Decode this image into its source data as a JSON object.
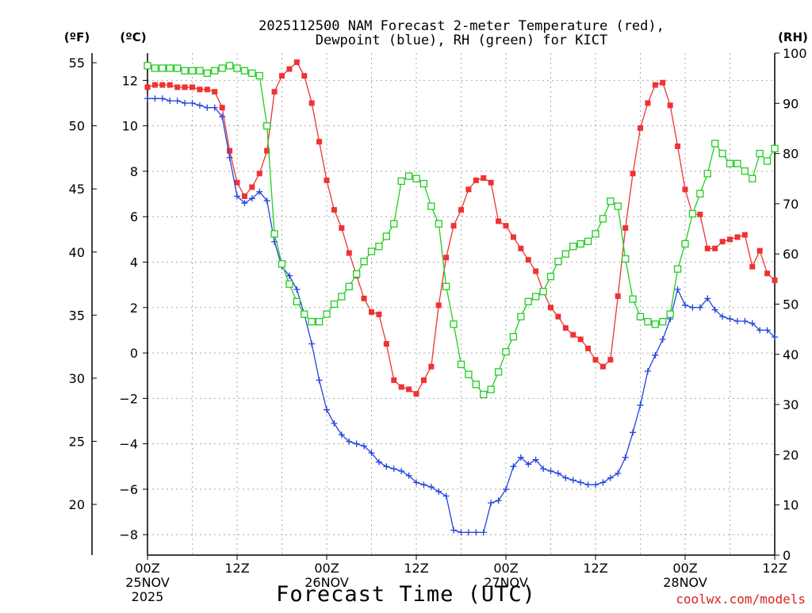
{
  "chart_data": {
    "type": "line",
    "title_line1": "2025112500 NAM Forecast 2-meter Temperature (red),",
    "title_line2": "Dewpoint (blue), RH (green) for KICT",
    "xlabel": "Forecast Time (UTC)",
    "credit": "coolwx.com/models",
    "left_outer_unit": "(ºF)",
    "left_inner_unit": "(ºC)",
    "right_unit": "(RH)",
    "x_range_hours": [
      0,
      84
    ],
    "y_celsius_range": [
      -8.9,
      13.2
    ],
    "rh_range": [
      0,
      100
    ],
    "colors": {
      "temperature": "#ee3333",
      "dewpoint": "#2244dd",
      "rh": "#22cc22",
      "grid": "#aaaaaa"
    },
    "x_ticks": [
      {
        "hour": 0,
        "time": "00Z",
        "date": "25NOV",
        "year": "2025"
      },
      {
        "hour": 12,
        "time": "12Z",
        "date": "",
        "year": ""
      },
      {
        "hour": 24,
        "time": "00Z",
        "date": "26NOV",
        "year": ""
      },
      {
        "hour": 36,
        "time": "12Z",
        "date": "",
        "year": ""
      },
      {
        "hour": 48,
        "time": "00Z",
        "date": "27NOV",
        "year": ""
      },
      {
        "hour": 60,
        "time": "12Z",
        "date": "",
        "year": ""
      },
      {
        "hour": 72,
        "time": "00Z",
        "date": "28NOV",
        "year": ""
      },
      {
        "hour": 84,
        "time": "12Z",
        "date": "",
        "year": ""
      }
    ],
    "celsius_ticks": [
      12,
      10,
      8,
      6,
      4,
      2,
      0,
      -2,
      -4,
      -6,
      -8
    ],
    "fahrenheit_ticks": [
      55,
      50,
      45,
      40,
      35,
      30,
      25,
      20
    ],
    "rh_ticks": [
      100,
      90,
      80,
      70,
      60,
      50,
      40,
      30,
      20,
      10,
      0
    ],
    "series": [
      {
        "name": "Temperature",
        "unit": "C",
        "marker": "filled-square",
        "color": "#ee3333",
        "points": [
          [
            0,
            11.7
          ],
          [
            1,
            11.8
          ],
          [
            2,
            11.8
          ],
          [
            3,
            11.8
          ],
          [
            4,
            11.7
          ],
          [
            5,
            11.7
          ],
          [
            6,
            11.7
          ],
          [
            7,
            11.6
          ],
          [
            8,
            11.6
          ],
          [
            9,
            11.5
          ],
          [
            10,
            10.8
          ],
          [
            11,
            8.9
          ],
          [
            12,
            7.5
          ],
          [
            13,
            6.9
          ],
          [
            14,
            7.3
          ],
          [
            15,
            7.9
          ],
          [
            16,
            8.9
          ],
          [
            17,
            11.5
          ],
          [
            18,
            12.2
          ],
          [
            19,
            12.5
          ],
          [
            20,
            12.8
          ],
          [
            21,
            12.2
          ],
          [
            22,
            11.0
          ],
          [
            23,
            9.3
          ],
          [
            24,
            7.6
          ],
          [
            25,
            6.3
          ],
          [
            26,
            5.5
          ],
          [
            27,
            4.4
          ],
          [
            28,
            3.4
          ],
          [
            29,
            2.4
          ],
          [
            30,
            1.8
          ],
          [
            31,
            1.7
          ],
          [
            32,
            0.4
          ],
          [
            33,
            -1.2
          ],
          [
            34,
            -1.5
          ],
          [
            35,
            -1.6
          ],
          [
            36,
            -1.8
          ],
          [
            37,
            -1.2
          ],
          [
            38,
            -0.6
          ],
          [
            39,
            2.1
          ],
          [
            40,
            4.2
          ],
          [
            41,
            5.6
          ],
          [
            42,
            6.3
          ],
          [
            43,
            7.2
          ],
          [
            44,
            7.6
          ],
          [
            45,
            7.7
          ],
          [
            46,
            7.5
          ],
          [
            47,
            5.8
          ],
          [
            48,
            5.6
          ],
          [
            49,
            5.1
          ],
          [
            50,
            4.6
          ],
          [
            51,
            4.1
          ],
          [
            52,
            3.6
          ],
          [
            53,
            2.7
          ],
          [
            54,
            2.0
          ],
          [
            55,
            1.6
          ],
          [
            56,
            1.1
          ],
          [
            57,
            0.8
          ],
          [
            58,
            0.6
          ],
          [
            59,
            0.2
          ],
          [
            60,
            -0.3
          ],
          [
            61,
            -0.6
          ],
          [
            62,
            -0.3
          ],
          [
            63,
            2.5
          ],
          [
            64,
            5.5
          ],
          [
            65,
            7.9
          ],
          [
            66,
            9.9
          ],
          [
            67,
            11.0
          ],
          [
            68,
            11.8
          ],
          [
            69,
            11.9
          ],
          [
            70,
            10.9
          ],
          [
            71,
            9.1
          ],
          [
            72,
            7.2
          ],
          [
            73,
            6.1
          ],
          [
            74,
            6.1
          ],
          [
            75,
            4.6
          ],
          [
            76,
            4.6
          ],
          [
            77,
            4.9
          ],
          [
            78,
            5.0
          ],
          [
            79,
            5.1
          ],
          [
            80,
            5.2
          ],
          [
            81,
            3.8
          ],
          [
            82,
            4.5
          ],
          [
            83,
            3.5
          ],
          [
            84,
            3.2
          ]
        ]
      },
      {
        "name": "Dewpoint",
        "unit": "C",
        "marker": "plus",
        "color": "#2244dd",
        "points": [
          [
            0,
            11.2
          ],
          [
            1,
            11.2
          ],
          [
            2,
            11.2
          ],
          [
            3,
            11.1
          ],
          [
            4,
            11.1
          ],
          [
            5,
            11.0
          ],
          [
            6,
            11.0
          ],
          [
            7,
            10.9
          ],
          [
            8,
            10.8
          ],
          [
            9,
            10.8
          ],
          [
            10,
            10.4
          ],
          [
            11,
            8.6
          ],
          [
            12,
            6.9
          ],
          [
            13,
            6.6
          ],
          [
            14,
            6.8
          ],
          [
            15,
            7.1
          ],
          [
            16,
            6.7
          ],
          [
            17,
            4.9
          ],
          [
            18,
            3.8
          ],
          [
            19,
            3.4
          ],
          [
            20,
            2.8
          ],
          [
            21,
            1.7
          ],
          [
            22,
            0.4
          ],
          [
            23,
            -1.2
          ],
          [
            24,
            -2.5
          ],
          [
            25,
            -3.1
          ],
          [
            26,
            -3.6
          ],
          [
            27,
            -3.9
          ],
          [
            28,
            -4.0
          ],
          [
            29,
            -4.1
          ],
          [
            30,
            -4.4
          ],
          [
            31,
            -4.8
          ],
          [
            32,
            -5.0
          ],
          [
            33,
            -5.1
          ],
          [
            34,
            -5.2
          ],
          [
            35,
            -5.4
          ],
          [
            36,
            -5.7
          ],
          [
            37,
            -5.8
          ],
          [
            38,
            -5.9
          ],
          [
            39,
            -6.1
          ],
          [
            40,
            -6.3
          ],
          [
            41,
            -7.8
          ],
          [
            42,
            -7.9
          ],
          [
            43,
            -7.9
          ],
          [
            44,
            -7.9
          ],
          [
            45,
            -7.9
          ],
          [
            46,
            -6.6
          ],
          [
            47,
            -6.5
          ],
          [
            48,
            -6.0
          ],
          [
            49,
            -5.0
          ],
          [
            50,
            -4.6
          ],
          [
            51,
            -4.9
          ],
          [
            52,
            -4.7
          ],
          [
            53,
            -5.1
          ],
          [
            54,
            -5.2
          ],
          [
            55,
            -5.3
          ],
          [
            56,
            -5.5
          ],
          [
            57,
            -5.6
          ],
          [
            58,
            -5.7
          ],
          [
            59,
            -5.8
          ],
          [
            60,
            -5.8
          ],
          [
            61,
            -5.7
          ],
          [
            62,
            -5.5
          ],
          [
            63,
            -5.3
          ],
          [
            64,
            -4.6
          ],
          [
            65,
            -3.5
          ],
          [
            66,
            -2.3
          ],
          [
            67,
            -0.8
          ],
          [
            68,
            -0.1
          ],
          [
            69,
            0.6
          ],
          [
            70,
            1.5
          ],
          [
            71,
            2.8
          ],
          [
            72,
            2.1
          ],
          [
            73,
            2.0
          ],
          [
            74,
            2.0
          ],
          [
            75,
            2.4
          ],
          [
            76,
            1.9
          ],
          [
            77,
            1.6
          ],
          [
            78,
            1.5
          ],
          [
            79,
            1.4
          ],
          [
            80,
            1.4
          ],
          [
            81,
            1.3
          ],
          [
            82,
            1.0
          ],
          [
            83,
            1.0
          ],
          [
            84,
            0.7
          ]
        ]
      },
      {
        "name": "RH",
        "unit": "%",
        "marker": "open-square",
        "color": "#22cc22",
        "points": [
          [
            0,
            97.5
          ],
          [
            1,
            97
          ],
          [
            2,
            97
          ],
          [
            3,
            97
          ],
          [
            4,
            97
          ],
          [
            5,
            96.5
          ],
          [
            6,
            96.5
          ],
          [
            7,
            96.5
          ],
          [
            8,
            96
          ],
          [
            9,
            96.5
          ],
          [
            10,
            97
          ],
          [
            11,
            97.5
          ],
          [
            12,
            97
          ],
          [
            13,
            96.5
          ],
          [
            14,
            96
          ],
          [
            15,
            95.5
          ],
          [
            16,
            85.5
          ],
          [
            17,
            64
          ],
          [
            18,
            58
          ],
          [
            19,
            54
          ],
          [
            20,
            50.5
          ],
          [
            21,
            48
          ],
          [
            22,
            46.5
          ],
          [
            23,
            46.5
          ],
          [
            24,
            48
          ],
          [
            25,
            50
          ],
          [
            26,
            51.5
          ],
          [
            27,
            53.5
          ],
          [
            28,
            56
          ],
          [
            29,
            58.5
          ],
          [
            30,
            60.5
          ],
          [
            31,
            61.5
          ],
          [
            32,
            63.5
          ],
          [
            33,
            66
          ],
          [
            34,
            74.5
          ],
          [
            35,
            75.5
          ],
          [
            36,
            75
          ],
          [
            37,
            74
          ],
          [
            38,
            69.5
          ],
          [
            39,
            66
          ],
          [
            40,
            53.5
          ],
          [
            41,
            46
          ],
          [
            42,
            38
          ],
          [
            43,
            36
          ],
          [
            44,
            34
          ],
          [
            45,
            32
          ],
          [
            46,
            33
          ],
          [
            47,
            36.5
          ],
          [
            48,
            40.5
          ],
          [
            49,
            43.5
          ],
          [
            50,
            47.5
          ],
          [
            51,
            50.5
          ],
          [
            52,
            51.5
          ],
          [
            53,
            52.5
          ],
          [
            54,
            55.5
          ],
          [
            55,
            58.5
          ],
          [
            56,
            60
          ],
          [
            57,
            61.5
          ],
          [
            58,
            62
          ],
          [
            59,
            62.5
          ],
          [
            60,
            64
          ],
          [
            61,
            67
          ],
          [
            62,
            70.5
          ],
          [
            63,
            69.5
          ],
          [
            64,
            59
          ],
          [
            65,
            51
          ],
          [
            66,
            47.5
          ],
          [
            67,
            46.5
          ],
          [
            68,
            46
          ],
          [
            69,
            46.5
          ],
          [
            70,
            48
          ],
          [
            71,
            57
          ],
          [
            72,
            62
          ],
          [
            73,
            68
          ],
          [
            74,
            72
          ],
          [
            75,
            76
          ],
          [
            76,
            82
          ],
          [
            77,
            80
          ],
          [
            78,
            78
          ],
          [
            79,
            78
          ],
          [
            80,
            76.5
          ],
          [
            81,
            75
          ],
          [
            82,
            80
          ],
          [
            83,
            78.5
          ],
          [
            84,
            81
          ]
        ]
      }
    ]
  }
}
